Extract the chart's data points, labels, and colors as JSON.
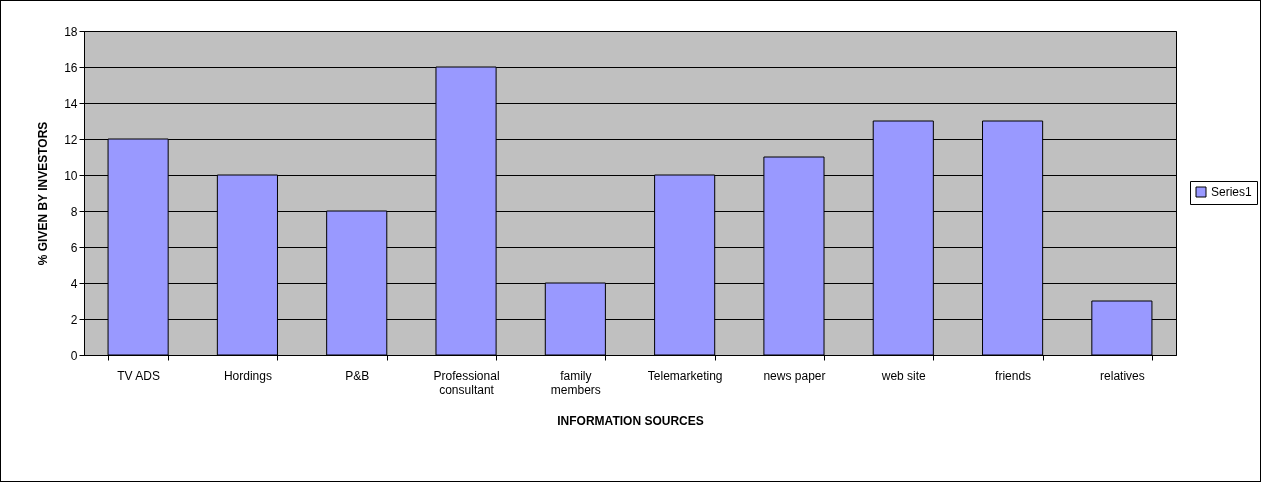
{
  "chart_data": {
    "type": "bar",
    "xlabel": "INFORMATION SOURCES",
    "ylabel": "% GIVEN BY INVESTORS",
    "categories": [
      "TV ADS",
      "Hordings",
      "P&B",
      "Professional consultant",
      "family members",
      "Telemarketing",
      "news paper",
      "web site",
      "friends",
      "relatives"
    ],
    "series": [
      {
        "name": "Series1",
        "color": "#9999ff",
        "values": [
          12,
          10,
          8,
          16,
          4,
          10,
          11,
          13,
          13,
          3
        ]
      }
    ],
    "ylim": [
      0,
      18
    ],
    "yticks": [
      0,
      2,
      4,
      6,
      8,
      10,
      12,
      14,
      16,
      18
    ],
    "grid": "y",
    "legend": "right"
  }
}
